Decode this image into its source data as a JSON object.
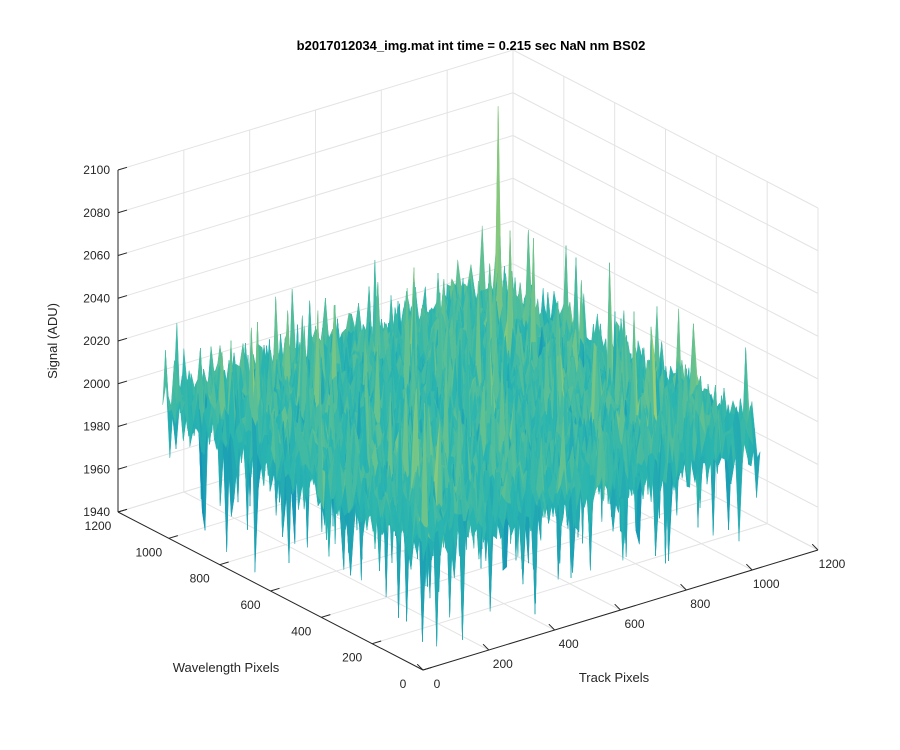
{
  "chart_data": {
    "type": "surface",
    "title": "b2017012034_img.mat int time = 0.215 sec  NaN nm BS02",
    "xlabel": "Track Pixels",
    "ylabel": "Wavelength Pixels",
    "zlabel": "Signal (ADU)",
    "xlim": [
      0,
      1200
    ],
    "ylim": [
      0,
      1200
    ],
    "zlim": [
      1940,
      2100
    ],
    "xticks": [
      0,
      200,
      400,
      600,
      800,
      1000,
      1200
    ],
    "yticks": [
      0,
      200,
      400,
      600,
      800,
      1000,
      1200
    ],
    "zticks": [
      1940,
      1960,
      1980,
      2000,
      2020,
      2040,
      2060,
      2080,
      2100
    ],
    "data_extent": {
      "x": [
        0,
        1024
      ],
      "y": [
        0,
        1024
      ]
    },
    "mean_signal": 2003,
    "noise_range": [
      1945,
      2095
    ],
    "peak": {
      "x": 1000,
      "y": 1000,
      "z": 2095
    },
    "grid": true,
    "colormap": "parula",
    "colors": {
      "low": "#0072bd",
      "mid": "#2ab5b0",
      "high": "#a9d06a",
      "max": "#c8dc5a"
    }
  }
}
